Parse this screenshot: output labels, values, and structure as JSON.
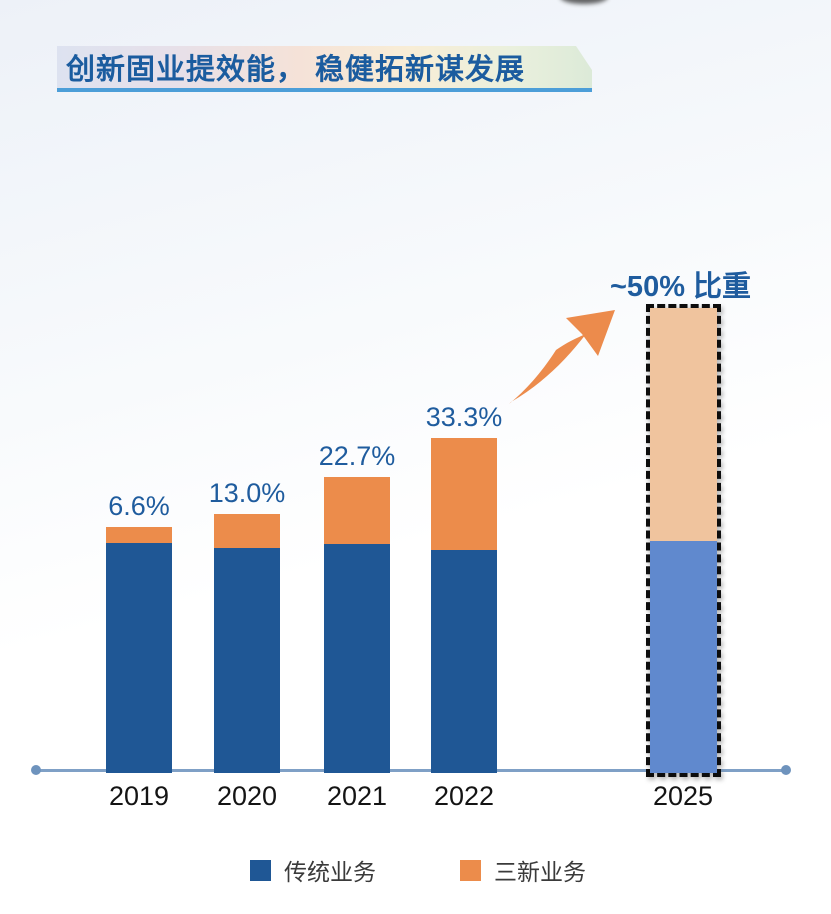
{
  "header": {
    "title": "创新固业提效能， 稳健拓新谋发展"
  },
  "legend": {
    "items": [
      {
        "label": "传统业务",
        "color": "#1F5795"
      },
      {
        "label": "三新业务",
        "color": "#EC8C4B"
      }
    ]
  },
  "annotation_2025": "~50% 比重",
  "chart_data": {
    "type": "bar",
    "stacked": true,
    "title": "创新固业提效能， 稳健拓新谋发展",
    "categories": [
      "2019",
      "2020",
      "2021",
      "2022",
      "2025"
    ],
    "series": [
      {
        "name": "传统业务",
        "color": "#1F5795",
        "highlight_color": "#6089CE"
      },
      {
        "name": "三新业务",
        "color": "#EC8C4B",
        "highlight_color": "#F0C49E"
      }
    ],
    "new_business_share_pct": [
      6.6,
      13.0,
      22.7,
      33.3,
      50
    ],
    "share_labels": [
      "6.6%",
      "13.0%",
      "22.7%",
      "33.3%",
      "~50% 比重"
    ],
    "relative_bar_totals": [
      246,
      259,
      296,
      335,
      465
    ],
    "highlight_category": "2025",
    "annotation": "~50% 比重",
    "xlabel": "",
    "ylabel": "",
    "grid": false,
    "y_axis_visible": false,
    "legend_position": "bottom",
    "colors": {
      "traditional": "#1F5795",
      "new": "#EC8C4B",
      "traditional_2025": "#6089CE",
      "new_2025": "#F0C49E",
      "label_blue": "#1F5C9E",
      "axis": "#7FA0C6",
      "arrow_orange": "#EC8B4C"
    }
  }
}
